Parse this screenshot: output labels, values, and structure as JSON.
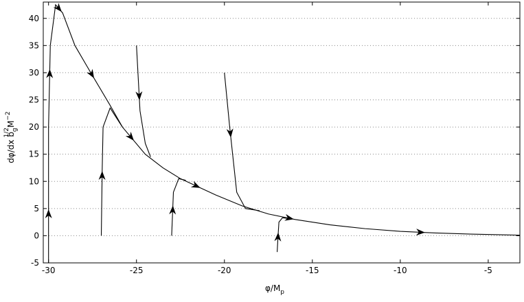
{
  "chart_data": {
    "type": "line",
    "xlabel": [
      "φ/M",
      "p"
    ],
    "ylabel": [
      "dφ/dx b",
      "g",
      "1/2",
      "M",
      "−2"
    ],
    "xlim": [
      -30.3,
      -3.2
    ],
    "ylim": [
      -5,
      43
    ],
    "xticks": [
      -30,
      -25,
      -20,
      -15,
      -10,
      -5
    ],
    "yticks": [
      -5,
      0,
      5,
      10,
      15,
      20,
      25,
      30,
      35,
      40
    ],
    "grid": true,
    "series": [
      {
        "color": "#000000",
        "x": [
          -30,
          -30,
          -29.9,
          -29.6,
          -29.2,
          -28.5,
          -27.6,
          -26.5,
          -25.8,
          -24.5,
          -23.5,
          -22.5,
          -21.5,
          -20.5,
          -19,
          -17.5,
          -16,
          -14,
          -12,
          -10,
          -8,
          -6,
          -4,
          -3.2
        ],
        "values": [
          -5,
          20,
          35,
          42.5,
          41,
          35,
          30,
          24,
          20,
          15,
          12.5,
          10.5,
          9,
          7.5,
          5.5,
          4,
          3,
          2,
          1.3,
          0.8,
          0.5,
          0.3,
          0.15,
          0.1
        ]
      },
      {
        "color": "#000000",
        "x": [
          -27,
          -26.95,
          -26.9,
          -26.5,
          -26,
          -25.8
        ],
        "values": [
          0,
          12,
          20,
          23.5,
          21,
          20
        ]
      },
      {
        "color": "#000000",
        "x": [
          -25,
          -24.8,
          -24.5,
          -24.2
        ],
        "values": [
          35,
          23,
          17,
          14.5
        ]
      },
      {
        "color": "#000000",
        "x": [
          -23,
          -22.95,
          -22.9,
          -22.6,
          -22.2
        ],
        "values": [
          0,
          4,
          8,
          10.5,
          10.2
        ]
      },
      {
        "color": "#000000",
        "x": [
          -20,
          -19.7,
          -19.3,
          -18.8,
          -18
        ],
        "values": [
          30,
          20,
          8,
          5,
          4.6
        ]
      },
      {
        "color": "#000000",
        "x": [
          -17,
          -16.95,
          -16.9,
          -16.7,
          -16.2
        ],
        "values": [
          -3,
          0,
          2.5,
          3.3,
          3.1
        ]
      }
    ]
  }
}
